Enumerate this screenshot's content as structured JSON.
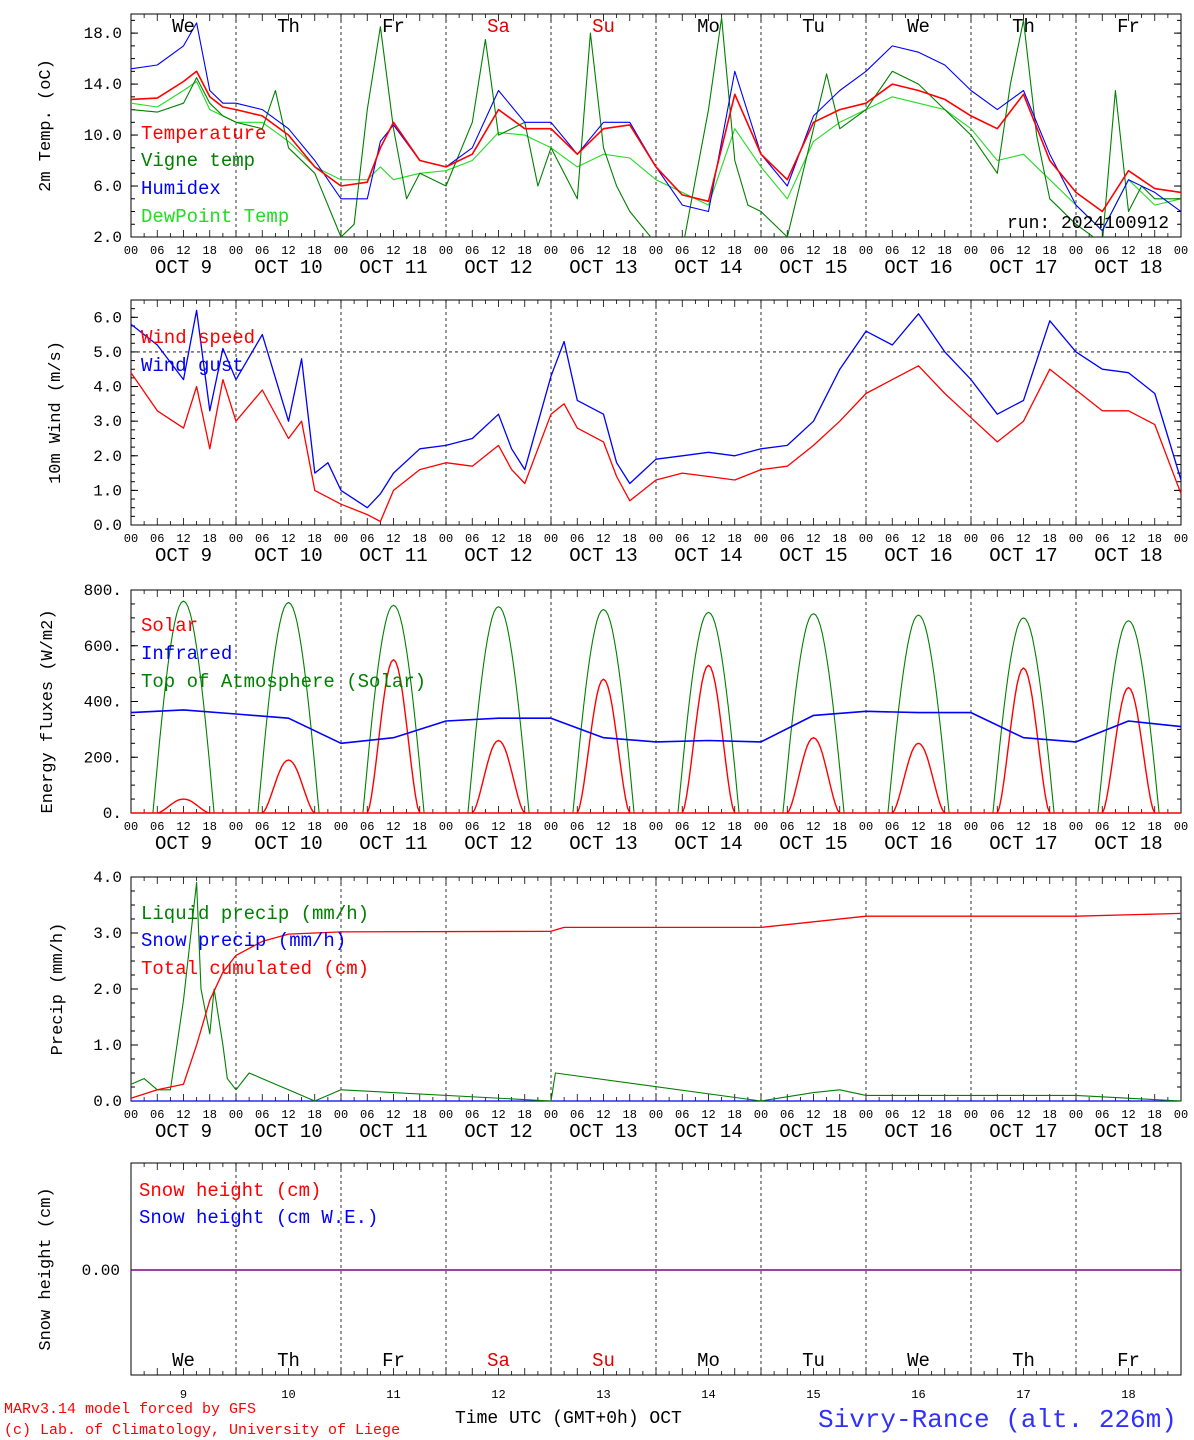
{
  "run_label": "run: 2024100912",
  "footer": {
    "model": "MARv3.14 model forced by GFS",
    "credit": "(c) Lab. of Climatology, University of Liege",
    "axis_title": "Time UTC (GMT+0h) OCT",
    "station": "Sivry-Rance (alt. 226m)"
  },
  "days": {
    "weekday": [
      "We",
      "Th",
      "Fr",
      "Sa",
      "Su",
      "Mo",
      "Tu",
      "We",
      "Th",
      "Fr"
    ],
    "weekend_color": "#e00000",
    "weekend_index": [
      3,
      4
    ],
    "date_labels": [
      "OCT  9",
      "OCT 10",
      "OCT 11",
      "OCT 12",
      "OCT 13",
      "OCT 14",
      "OCT 15",
      "OCT 16",
      "OCT 17",
      "OCT 18"
    ],
    "day_numbers": [
      "9",
      "10",
      "11",
      "12",
      "13",
      "14",
      "15",
      "16",
      "17",
      "18"
    ],
    "hour_ticks": [
      "00",
      "06",
      "12",
      "18"
    ],
    "final_tick": "00"
  },
  "colors": {
    "red": "#ff0000",
    "green": "#008000",
    "blue": "#0000ff",
    "lightgreen": "#22dd22",
    "purple": "#800080"
  },
  "chart_data": [
    {
      "type": "line",
      "ylabel": "2m Temp. (oC)",
      "ylim": [
        2.0,
        19.5
      ],
      "yticks": [
        "2.0",
        "6.0",
        "10.0",
        "14.0",
        "18.0"
      ],
      "x_unit": "hours since Oct 9 00 UTC",
      "series": [
        {
          "name": "Temperature",
          "color": "red",
          "x": [
            0,
            6,
            12,
            15,
            18,
            21,
            24,
            30,
            36,
            42,
            48,
            54,
            57,
            60,
            66,
            72,
            78,
            84,
            90,
            96,
            102,
            108,
            114,
            120,
            126,
            132,
            138,
            144,
            150,
            156,
            162,
            168,
            174,
            180,
            186,
            192,
            198,
            204,
            210,
            216,
            222,
            228,
            234,
            240
          ],
          "y": [
            12.8,
            12.9,
            14.2,
            15.0,
            13.0,
            12.2,
            12.0,
            11.5,
            10.0,
            7.5,
            6.0,
            6.3,
            9.0,
            11.0,
            8.0,
            7.5,
            8.5,
            12.0,
            10.5,
            10.5,
            8.5,
            10.5,
            10.8,
            7.5,
            5.3,
            4.8,
            13.2,
            8.5,
            6.5,
            11.0,
            12.0,
            12.5,
            14.0,
            13.5,
            12.8,
            11.5,
            10.5,
            13.2,
            8.0,
            5.5,
            4.0,
            7.2,
            5.8,
            5.5
          ]
        },
        {
          "name": "Vigne temp",
          "color": "green",
          "x": [
            0,
            6,
            12,
            15,
            18,
            21,
            24,
            30,
            33,
            36,
            42,
            48,
            51,
            54,
            57,
            60,
            63,
            66,
            72,
            78,
            81,
            84,
            90,
            93,
            96,
            102,
            105,
            108,
            111,
            114,
            120,
            126,
            132,
            135,
            138,
            141,
            144,
            150,
            156,
            159,
            162,
            168,
            174,
            180,
            186,
            192,
            198,
            201,
            204,
            207,
            210,
            216,
            222,
            225,
            228,
            231,
            234,
            240
          ],
          "y": [
            12.0,
            11.8,
            12.5,
            14.5,
            12.5,
            11.5,
            11.0,
            10.5,
            13.5,
            9.0,
            7.0,
            2.0,
            3.0,
            12.0,
            18.5,
            10.5,
            5.0,
            7.0,
            6.0,
            11.0,
            17.5,
            10.0,
            11.0,
            6.0,
            9.0,
            5.0,
            18.0,
            9.0,
            6.0,
            4.0,
            1.5,
            1.0,
            12.0,
            19.2,
            8.0,
            4.5,
            4.0,
            2.0,
            10.5,
            14.8,
            10.5,
            12.0,
            15.0,
            14.0,
            12.0,
            10.0,
            7.0,
            14.0,
            19.0,
            10.0,
            5.0,
            3.0,
            1.5,
            13.5,
            4.0,
            6.0,
            5.0,
            5.0
          ]
        },
        {
          "name": "Humidex",
          "color": "blue",
          "x": [
            0,
            6,
            12,
            15,
            18,
            21,
            24,
            30,
            36,
            42,
            48,
            54,
            57,
            60,
            66,
            72,
            78,
            84,
            90,
            96,
            102,
            108,
            114,
            120,
            126,
            132,
            138,
            144,
            150,
            156,
            162,
            168,
            174,
            180,
            186,
            192,
            198,
            204,
            210,
            216,
            222,
            228,
            234,
            240
          ],
          "y": [
            15.2,
            15.5,
            17.0,
            18.8,
            13.5,
            12.5,
            12.5,
            12.0,
            10.5,
            8.0,
            5.0,
            5.0,
            9.5,
            10.8,
            8.0,
            7.5,
            9.0,
            13.5,
            11.0,
            11.0,
            8.5,
            11.0,
            11.0,
            7.5,
            4.5,
            4.0,
            15.0,
            8.5,
            6.0,
            11.5,
            13.5,
            15.0,
            17.0,
            16.5,
            15.5,
            13.5,
            12.0,
            13.5,
            8.5,
            4.5,
            2.5,
            6.5,
            5.5,
            4.0
          ]
        },
        {
          "name": "DewPoint Temp",
          "color": "lightgreen",
          "x": [
            0,
            6,
            12,
            15,
            18,
            21,
            24,
            30,
            36,
            42,
            48,
            54,
            57,
            60,
            66,
            72,
            78,
            84,
            90,
            96,
            102,
            108,
            114,
            120,
            126,
            132,
            138,
            144,
            150,
            156,
            162,
            168,
            174,
            180,
            186,
            192,
            198,
            204,
            210,
            216,
            222,
            228,
            234,
            240
          ],
          "y": [
            12.5,
            12.2,
            13.5,
            14.2,
            12.0,
            11.5,
            11.0,
            11.0,
            9.5,
            7.5,
            6.5,
            6.5,
            7.5,
            6.5,
            7.0,
            7.2,
            8.0,
            10.2,
            10.0,
            9.0,
            7.5,
            8.5,
            8.2,
            6.5,
            5.5,
            4.5,
            10.5,
            7.5,
            5.0,
            9.5,
            11.0,
            12.0,
            13.0,
            12.5,
            12.0,
            10.5,
            8.0,
            8.5,
            6.5,
            4.5,
            2.5,
            6.5,
            4.5,
            5.0
          ]
        }
      ]
    },
    {
      "type": "line",
      "ylabel": "10m Wind (m/s)",
      "ylim": [
        0,
        6.5
      ],
      "yticks": [
        "0.0",
        "1.0",
        "2.0",
        "3.0",
        "4.0",
        "5.0",
        "6.0"
      ],
      "reference_line": 5.0,
      "series": [
        {
          "name": "Wind speed",
          "color": "red",
          "x": [
            0,
            6,
            12,
            15,
            18,
            21,
            24,
            30,
            36,
            39,
            42,
            45,
            48,
            54,
            57,
            60,
            66,
            72,
            78,
            84,
            87,
            90,
            96,
            99,
            102,
            108,
            111,
            114,
            120,
            126,
            132,
            138,
            144,
            150,
            156,
            162,
            168,
            174,
            180,
            186,
            192,
            198,
            204,
            210,
            216,
            222,
            228,
            234,
            240
          ],
          "y": [
            4.4,
            3.3,
            2.8,
            4.0,
            2.2,
            4.2,
            3.0,
            3.9,
            2.5,
            3.0,
            1.0,
            0.8,
            0.6,
            0.3,
            0.1,
            1.0,
            1.6,
            1.8,
            1.7,
            2.3,
            1.6,
            1.2,
            3.2,
            3.5,
            2.8,
            2.4,
            1.4,
            0.7,
            1.3,
            1.5,
            1.4,
            1.3,
            1.6,
            1.7,
            2.3,
            3.0,
            3.8,
            4.2,
            4.6,
            3.8,
            3.1,
            2.4,
            3.0,
            4.5,
            3.9,
            3.3,
            3.3,
            2.9,
            0.9
          ]
        },
        {
          "name": "Wind gust",
          "color": "blue",
          "x": [
            0,
            6,
            12,
            15,
            18,
            21,
            24,
            30,
            36,
            39,
            42,
            45,
            48,
            54,
            57,
            60,
            66,
            72,
            78,
            84,
            87,
            90,
            96,
            99,
            102,
            108,
            111,
            114,
            120,
            126,
            132,
            138,
            144,
            150,
            156,
            162,
            168,
            174,
            180,
            186,
            192,
            198,
            204,
            210,
            216,
            222,
            228,
            234,
            240
          ],
          "y": [
            5.8,
            5.2,
            4.2,
            6.2,
            3.3,
            5.1,
            4.2,
            5.5,
            3.0,
            4.8,
            1.5,
            1.8,
            1.0,
            0.5,
            0.9,
            1.5,
            2.2,
            2.3,
            2.5,
            3.2,
            2.2,
            1.6,
            4.3,
            5.3,
            3.6,
            3.2,
            1.8,
            1.2,
            1.9,
            2.0,
            2.1,
            2.0,
            2.2,
            2.3,
            3.0,
            4.5,
            5.6,
            5.2,
            6.1,
            5.0,
            4.2,
            3.2,
            3.6,
            5.9,
            5.0,
            4.5,
            4.4,
            3.8,
            1.3
          ]
        }
      ]
    },
    {
      "type": "line",
      "ylabel": "Energy fluxes (W/m2)",
      "ylim": [
        0,
        800
      ],
      "yticks": [
        "0.",
        "200.",
        "400.",
        "600.",
        "800."
      ],
      "series": [
        {
          "name": "Solar",
          "color": "red",
          "peaks": [
            50,
            190,
            550,
            260,
            480,
            530,
            270,
            250,
            520,
            450
          ]
        },
        {
          "name": "Infrared",
          "color": "blue",
          "x": [
            0,
            12,
            24,
            36,
            48,
            60,
            72,
            84,
            96,
            108,
            120,
            132,
            144,
            156,
            168,
            180,
            192,
            204,
            216,
            228,
            240
          ],
          "y": [
            360,
            370,
            355,
            340,
            250,
            270,
            330,
            340,
            340,
            270,
            255,
            260,
            255,
            350,
            365,
            360,
            360,
            270,
            255,
            330,
            310
          ]
        },
        {
          "name": "Top of Atmosphere (Solar)",
          "color": "green",
          "peaks": [
            760,
            755,
            745,
            740,
            730,
            720,
            715,
            710,
            700,
            690
          ]
        }
      ]
    },
    {
      "type": "line",
      "ylabel": "Precip (mm/h)",
      "ylim": [
        0,
        4.0
      ],
      "yticks": [
        "0.0",
        "1.0",
        "2.0",
        "3.0",
        "4.0"
      ],
      "series": [
        {
          "name": "Liquid precip (mm/h)",
          "color": "green",
          "x": [
            0,
            3,
            6,
            9,
            12,
            15,
            16,
            18,
            19,
            20,
            21,
            22,
            24,
            27,
            30,
            33,
            36,
            39,
            42,
            48,
            96,
            97,
            144,
            156,
            162,
            168,
            180,
            216,
            240
          ],
          "y": [
            0.3,
            0.4,
            0.2,
            0.2,
            1.8,
            3.9,
            2.0,
            1.2,
            2.0,
            1.5,
            1.0,
            0.4,
            0.2,
            0.5,
            0.4,
            0.3,
            0.2,
            0.1,
            0.0,
            0.2,
            0.0,
            0.5,
            0.0,
            0.15,
            0.2,
            0.1,
            0.1,
            0.1,
            0.0
          ]
        },
        {
          "name": "Snow precip (mm/h)",
          "color": "blue",
          "x": [
            0,
            240
          ],
          "y": [
            0,
            0
          ]
        },
        {
          "name": "Total cumulated (cm)",
          "color": "red",
          "x": [
            0,
            6,
            12,
            15,
            18,
            21,
            24,
            30,
            36,
            48,
            96,
            99,
            144,
            156,
            168,
            216,
            240
          ],
          "y": [
            0.05,
            0.2,
            0.3,
            1.0,
            1.8,
            2.3,
            2.6,
            2.85,
            2.98,
            3.02,
            3.03,
            3.1,
            3.1,
            3.2,
            3.3,
            3.3,
            3.35
          ]
        }
      ]
    },
    {
      "type": "line",
      "ylabel": "Snow height (cm)",
      "yticks": [
        "0.00"
      ],
      "series": [
        {
          "name": "Snow height (cm)",
          "color": "red",
          "x": [
            0,
            240
          ],
          "y": [
            0,
            0
          ]
        },
        {
          "name": "Snow height (cm W.E.)",
          "color": "blue",
          "x": [
            0,
            240
          ],
          "y": [
            0,
            0
          ]
        }
      ]
    }
  ]
}
